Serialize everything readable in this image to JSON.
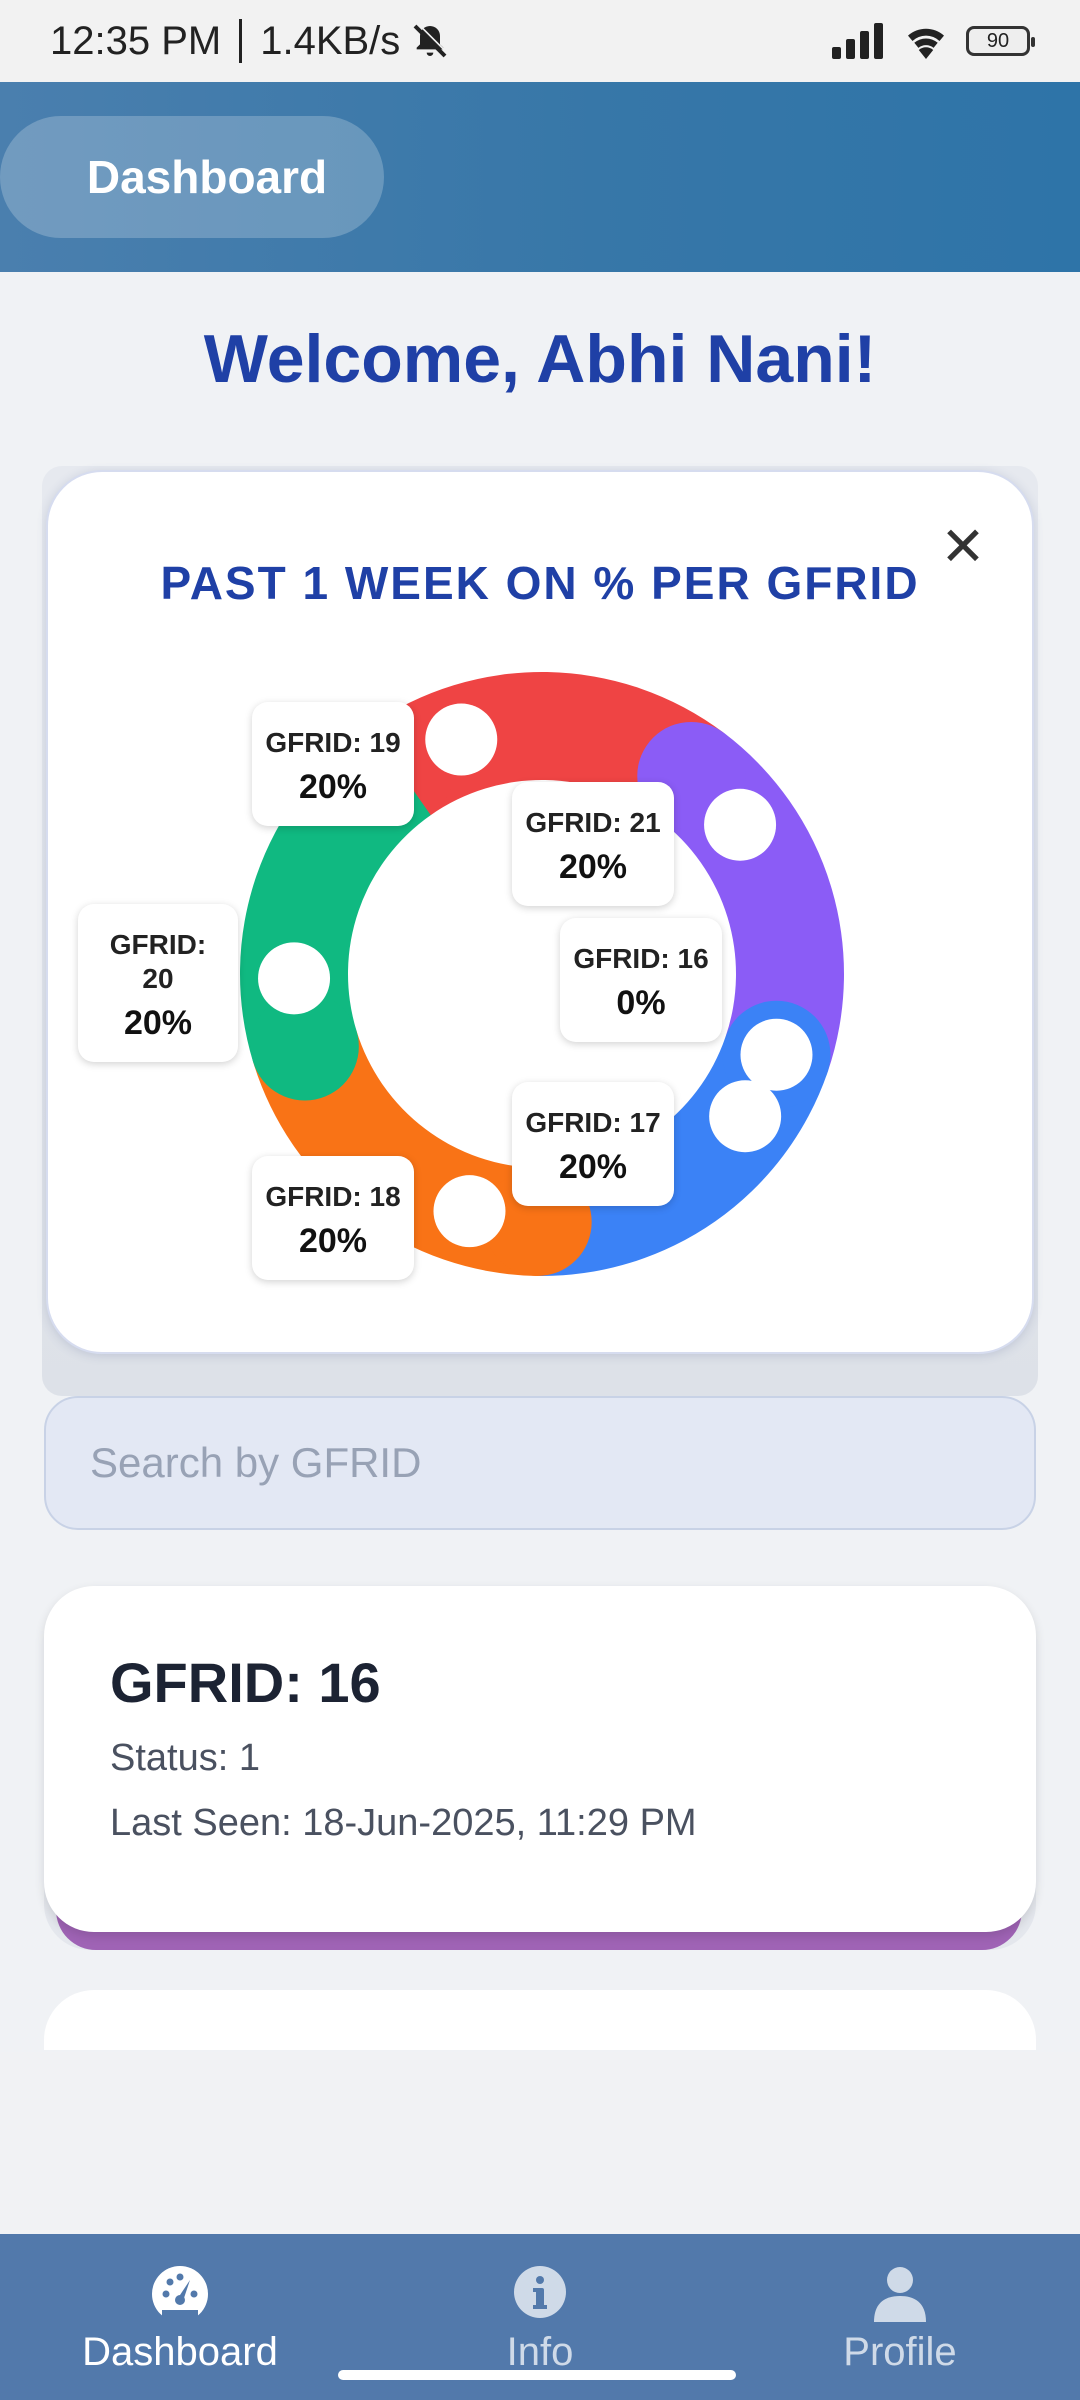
{
  "status_bar": {
    "time": "12:35 PM",
    "speed": "1.4KB/s",
    "battery": "90"
  },
  "header": {
    "title": "Dashboard"
  },
  "welcome": "Welcome, Abhi Nani!",
  "chart_data": {
    "type": "pie",
    "title": "PAST 1 WEEK ON % PER GFRID",
    "donut": true,
    "slices": [
      {
        "label": "GFRID: 19",
        "value": 20,
        "display": "20%",
        "color": "#ef4444"
      },
      {
        "label": "GFRID: 21",
        "value": 20,
        "display": "20%",
        "color": "#8b5cf6"
      },
      {
        "label": "GFRID: 16",
        "value": 0,
        "display": "0%",
        "color": "#14b8a6"
      },
      {
        "label": "GFRID: 17",
        "value": 20,
        "display": "20%",
        "color": "#3b82f6"
      },
      {
        "label": "GFRID: 18",
        "value": 20,
        "display": "20%",
        "color": "#f97316"
      },
      {
        "label": "GFRID: 20",
        "value": 20,
        "display": "20%",
        "color": "#10b981"
      }
    ]
  },
  "search": {
    "placeholder": "Search by GFRID",
    "value": ""
  },
  "device_card": {
    "title": "GFRID: 16",
    "status": "Status: 1",
    "last_seen": "Last Seen: 18-Jun-2025, 11:29 PM"
  },
  "nav": {
    "items": [
      {
        "label": "Dashboard",
        "icon": "gauge-icon",
        "active": true
      },
      {
        "label": "Info",
        "icon": "info-icon",
        "active": false
      },
      {
        "label": "Profile",
        "icon": "user-icon",
        "active": false
      }
    ]
  },
  "colors": {
    "header": "#3777a8",
    "accent": "#1f40a6",
    "nav": "#5279ab",
    "card_strip": "#9f63b5"
  }
}
